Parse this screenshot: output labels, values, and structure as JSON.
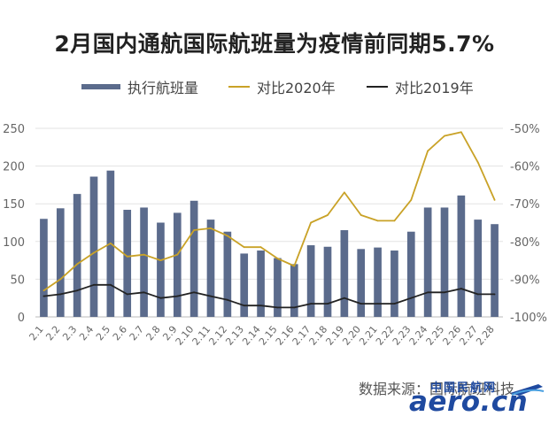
{
  "chart_data": {
    "type": "bar",
    "title": "2月国内通航国际航班量为疫情前同期5.7%",
    "categories": [
      "2.1",
      "2.2",
      "2.3",
      "2.4",
      "2.5",
      "2.6",
      "2.7",
      "2.8",
      "2.9",
      "2.10",
      "2.11",
      "2.12",
      "2.13",
      "2.14",
      "2.15",
      "2.16",
      "2.17",
      "2.18",
      "2.19",
      "2.20",
      "2.21",
      "2.22",
      "2.23",
      "2.24",
      "2.25",
      "2.26",
      "2.27",
      "2.28"
    ],
    "series": [
      {
        "name": "执行航班量",
        "type": "bar",
        "axis": "left",
        "color": "#5b6b8c",
        "values": [
          130,
          144,
          163,
          186,
          194,
          142,
          145,
          125,
          138,
          154,
          129,
          113,
          84,
          88,
          78,
          70,
          95,
          93,
          115,
          90,
          92,
          88,
          113,
          145,
          145,
          161,
          129,
          123
        ]
      },
      {
        "name": "对比2020年",
        "type": "line",
        "axis": "right",
        "color": "#c9a227",
        "values": [
          -93,
          -90,
          -86,
          -83,
          -80.5,
          -84,
          -83.5,
          -85,
          -83.5,
          -77,
          -76.5,
          -78.5,
          -81.5,
          -81.5,
          -84.5,
          -86.5,
          -75,
          -73,
          -67,
          -73,
          -74.5,
          -74.5,
          -69,
          -56,
          -52,
          -51,
          -59,
          -69
        ]
      },
      {
        "name": "对比2019年",
        "type": "line",
        "axis": "right",
        "color": "#222222",
        "values": [
          -94.5,
          -94,
          -93,
          -91.5,
          -91.5,
          -94,
          -93.5,
          -95,
          -94.5,
          -93.5,
          -94.5,
          -95.5,
          -97,
          -97,
          -97.5,
          -97.5,
          -96.5,
          -96.5,
          -95,
          -96.5,
          -96.5,
          -96.5,
          -95,
          -93.5,
          -93.5,
          -92.5,
          -94,
          -94
        ]
      }
    ],
    "y_left": {
      "ylim": [
        0,
        250
      ],
      "ticks": [
        0,
        50,
        100,
        150,
        200,
        250
      ]
    },
    "y_right": {
      "ylim": [
        -100,
        -50
      ],
      "ticks": [
        -50,
        -60,
        -70,
        -80,
        -90,
        -100
      ],
      "tick_labels": [
        "-50%",
        "-60%",
        "-70%",
        "-80%",
        "-90%",
        "-100%"
      ]
    },
    "legend": "top",
    "grid": true
  },
  "source": "数据来源：国际航班科技",
  "logo": {
    "name": "中国民航网",
    "text": "aero.cn"
  },
  "colors": {
    "bar": "#5b6b8c",
    "line2020": "#c9a227",
    "line2019": "#222222",
    "grid": "#e3e3e3",
    "axis_text": "#666666"
  }
}
